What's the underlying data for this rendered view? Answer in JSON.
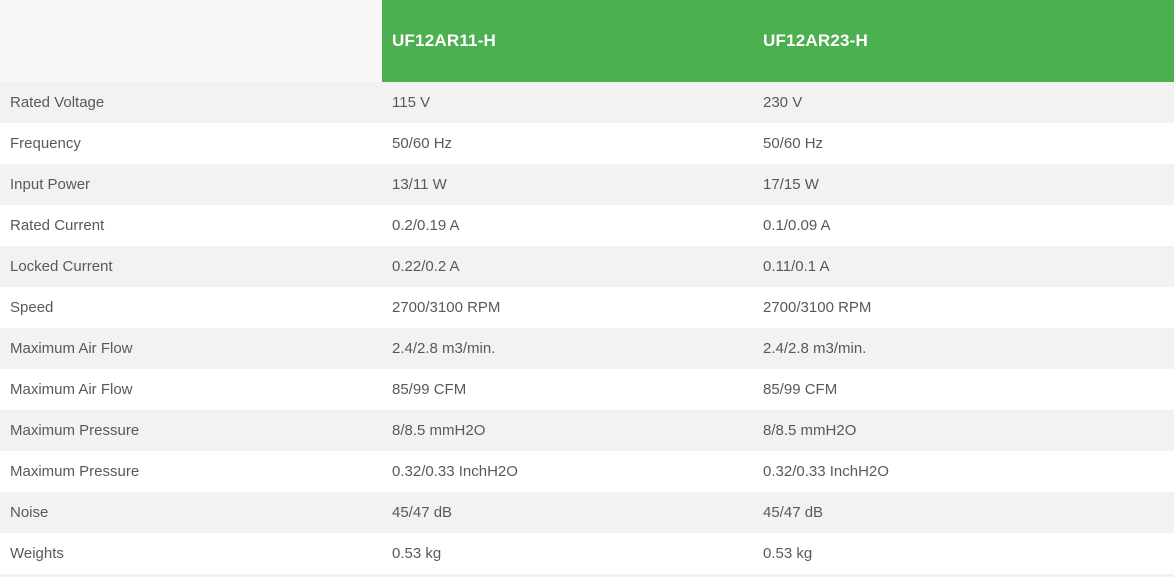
{
  "colors": {
    "header_bg": "#4caf50",
    "header_text": "#ffffff",
    "row_shaded_bg": "#f2f2f2",
    "row_bg": "#ffffff",
    "corner_bg": "#f8f8f8",
    "body_text": "#595959"
  },
  "table": {
    "columns": [
      "UF12AR11-H",
      "UF12AR23-H"
    ],
    "rows": [
      {
        "label": "Rated Voltage",
        "values": [
          "115 V",
          "230 V"
        ]
      },
      {
        "label": "Frequency",
        "values": [
          "50/60 Hz",
          "50/60 Hz"
        ]
      },
      {
        "label": "Input Power",
        "values": [
          "13/11 W",
          "17/15 W"
        ]
      },
      {
        "label": "Rated Current",
        "values": [
          "0.2/0.19 A",
          "0.1/0.09 A"
        ]
      },
      {
        "label": "Locked Current",
        "values": [
          "0.22/0.2 A",
          "0.11/0.1 A"
        ]
      },
      {
        "label": "Speed",
        "values": [
          "2700/3100 RPM",
          "2700/3100 RPM"
        ]
      },
      {
        "label": "Maximum Air Flow",
        "values": [
          "2.4/2.8 m3/min.",
          "2.4/2.8 m3/min."
        ]
      },
      {
        "label": "Maximum Air Flow",
        "values": [
          "85/99 CFM",
          "85/99 CFM"
        ]
      },
      {
        "label": "Maximum Pressure",
        "values": [
          "8/8.5 mmH2O",
          "8/8.5 mmH2O"
        ]
      },
      {
        "label": "Maximum Pressure",
        "values": [
          "0.32/0.33 InchH2O",
          "0.32/0.33 InchH2O"
        ]
      },
      {
        "label": "Noise",
        "values": [
          "45/47 dB",
          "45/47 dB"
        ]
      },
      {
        "label": "Weights",
        "values": [
          "0.53 kg",
          "0.53 kg"
        ]
      }
    ]
  }
}
